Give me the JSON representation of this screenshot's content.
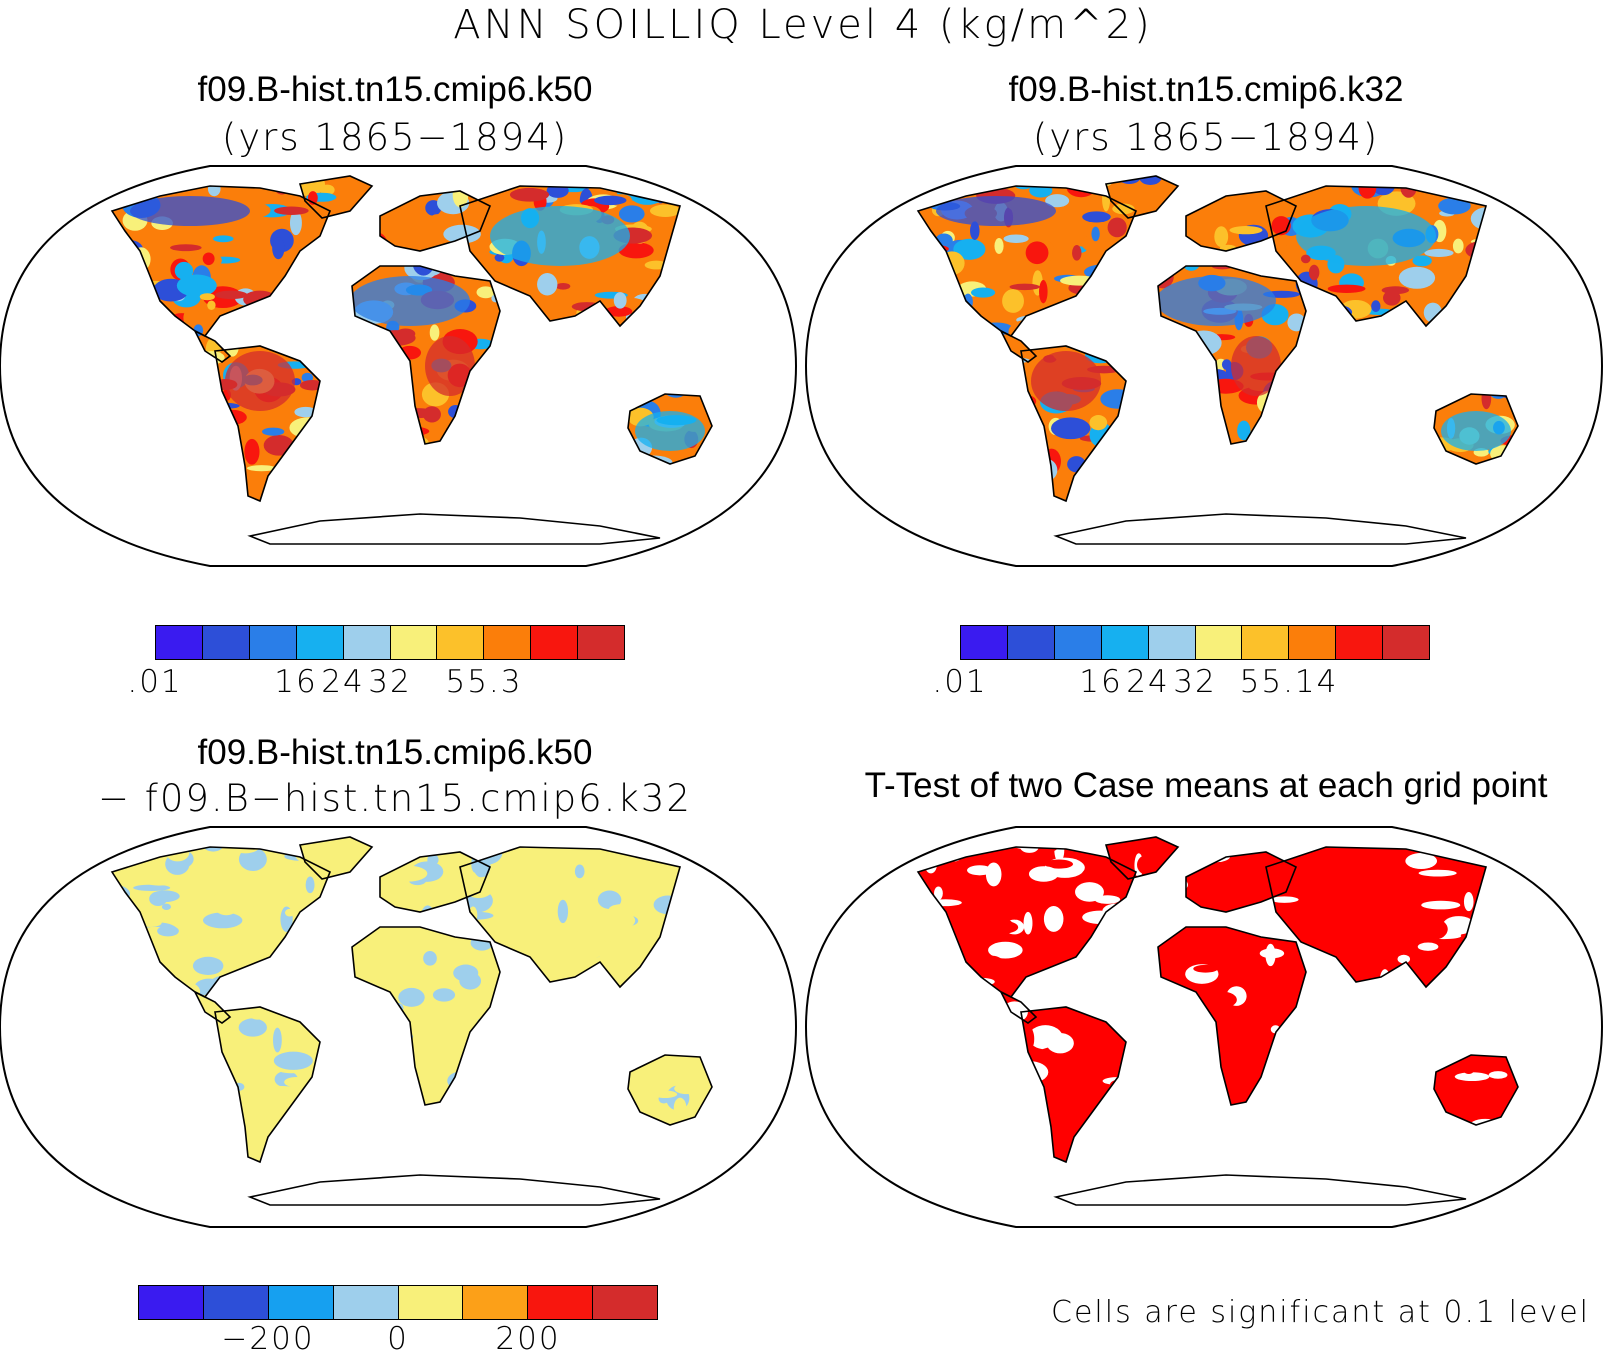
{
  "title": "ANN SOILLIQ Level 4 (kg/m^2)",
  "panels": {
    "top_left": {
      "title": "f09.B-hist.tn15.cmip6.k50",
      "subtitle": "(yrs 1865−1894)"
    },
    "top_right": {
      "title": "f09.B-hist.tn15.cmip6.k32",
      "subtitle": "(yrs 1865−1894)"
    },
    "bottom_left": {
      "title": "f09.B-hist.tn15.cmip6.k50",
      "subtitle": "− f09.B−hist.tn15.cmip6.k32"
    },
    "bottom_right": {
      "title": "T-Test of two Case means at each grid point",
      "note": "Cells are significant at 0.1 level"
    }
  },
  "colorbars": {
    "top_left": {
      "colors": [
        "#3a1bf0",
        "#2d4fd8",
        "#2a7ee8",
        "#16b0f0",
        "#9ecfec",
        "#f8f07a",
        "#fcc12a",
        "#fb7e0a",
        "#f8160e",
        "#d42c2c"
      ],
      "ticks": [
        ".01",
        "16",
        "24",
        "32",
        "55.3"
      ],
      "tick_positions": [
        0,
        3,
        4,
        5,
        7
      ]
    },
    "top_right": {
      "colors": [
        "#3a1bf0",
        "#2d4fd8",
        "#2a7ee8",
        "#16b0f0",
        "#9ecfec",
        "#f8f07a",
        "#fcc12a",
        "#fb7e0a",
        "#f8160e",
        "#d42c2c"
      ],
      "ticks": [
        ".01",
        "16",
        "24",
        "32",
        "55.14"
      ],
      "tick_positions": [
        0,
        3,
        4,
        5,
        7
      ]
    },
    "bottom_left": {
      "colors": [
        "#3a1bf0",
        "#2d4fd8",
        "#16a0f0",
        "#9ecfec",
        "#f8f07a",
        "#fca018",
        "#f8160e",
        "#d42c2c"
      ],
      "ticks": [
        "−200",
        "0",
        "200"
      ],
      "tick_positions": [
        2,
        4,
        6
      ]
    }
  }
}
